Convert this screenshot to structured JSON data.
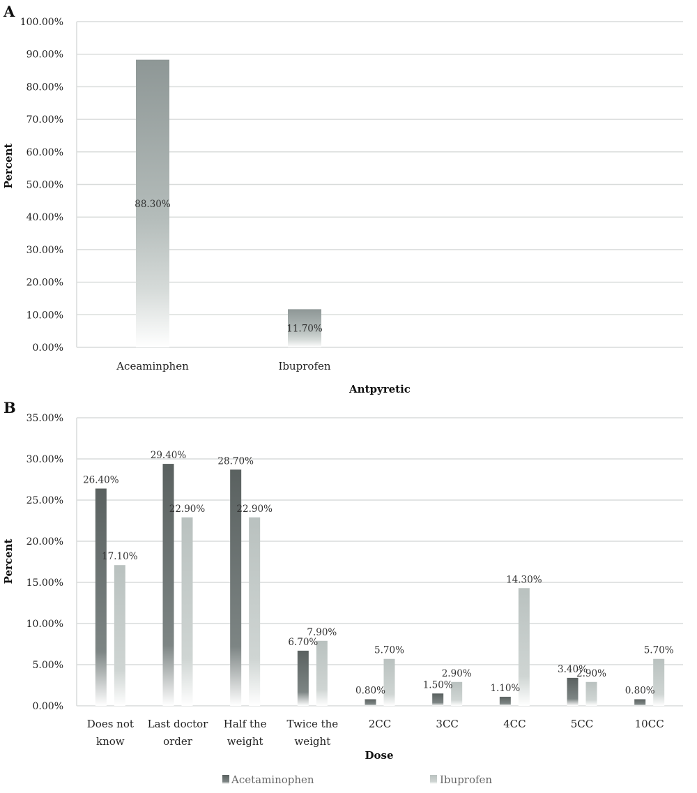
{
  "chart_data": [
    {
      "panel": "A",
      "type": "bar",
      "categories": [
        "Aceaminphen",
        "Ibuprofen"
      ],
      "values": [
        88.3,
        11.7
      ],
      "value_labels": [
        "88.30%",
        "11.70%"
      ],
      "xlabel": "Antpyretic",
      "ylabel": "Percent",
      "ylim": [
        0,
        100
      ],
      "yticks": [
        "0.00%",
        "10.00%",
        "20.00%",
        "30.00%",
        "40.00%",
        "50.00%",
        "60.00%",
        "70.00%",
        "80.00%",
        "90.00%",
        "100.00%"
      ],
      "grid": true,
      "colors": {
        "bar": "#8e9796"
      }
    },
    {
      "panel": "B",
      "type": "bar",
      "categories": [
        [
          "Does not",
          "know"
        ],
        [
          "Last doctor",
          "order"
        ],
        [
          "Half the",
          "weight"
        ],
        [
          "Twice the",
          "weight"
        ],
        [
          "2CC"
        ],
        [
          "3CC"
        ],
        [
          "4CC"
        ],
        [
          "5CC"
        ],
        [
          "10CC"
        ]
      ],
      "series": [
        {
          "name": "Acetaminophen",
          "values": [
            26.4,
            29.4,
            28.7,
            6.7,
            0.8,
            1.5,
            1.1,
            3.4,
            0.8
          ],
          "value_labels": [
            "26.40%",
            "29.40%",
            "28.70%",
            "6.70%",
            "0.80%",
            "1.50%",
            "1.10%",
            "3.40%",
            "0.80%"
          ],
          "color": "#5a6160"
        },
        {
          "name": "Ibuprofen",
          "values": [
            17.1,
            22.9,
            22.9,
            7.9,
            5.7,
            2.9,
            14.3,
            2.9,
            5.7
          ],
          "value_labels": [
            "17.10%",
            "22.90%",
            "22.90%",
            "7.90%",
            "5.70%",
            "2.90%",
            "14.30%",
            "2.90%",
            "5.70%"
          ],
          "color": "#b9c1bf"
        }
      ],
      "xlabel": "Dose",
      "ylabel": "Percent",
      "ylim": [
        0,
        35
      ],
      "yticks": [
        "0.00%",
        "5.00%",
        "10.00%",
        "15.00%",
        "20.00%",
        "25.00%",
        "30.00%",
        "35.00%"
      ],
      "grid": true,
      "legend": "bottom"
    }
  ]
}
